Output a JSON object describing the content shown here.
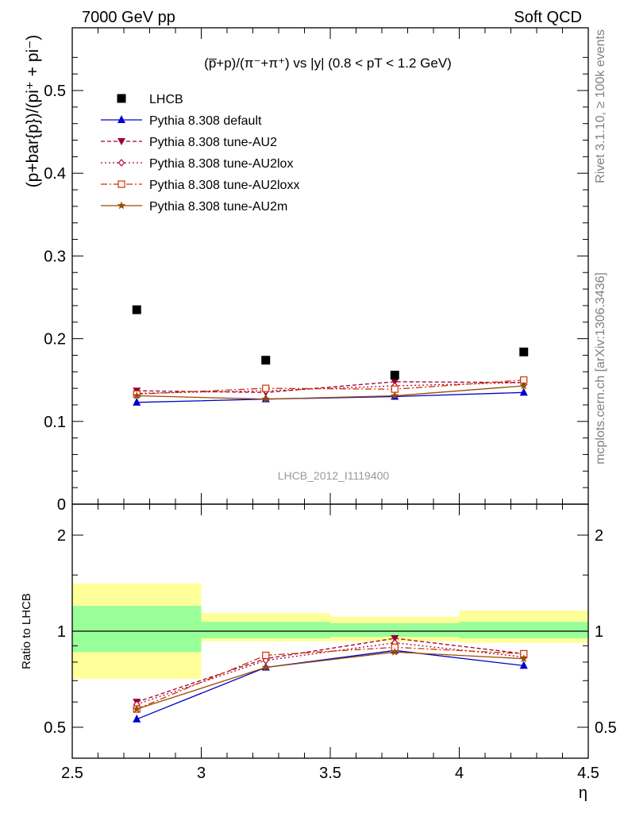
{
  "header": {
    "left": "7000 GeV pp",
    "right": "Soft QCD"
  },
  "side_labels": {
    "rivet": "Rivet 3.1.10, ≥ 100k events",
    "mcplots": "mcplots.cern.ch [arXiv:1306.3436]"
  },
  "watermark": "LHCB_2012_I1119400",
  "colors": {
    "data": "#000000",
    "default": "#0000cc",
    "au2": "#990033",
    "au2lox": "#b30033",
    "au2loxx": "#cc3300",
    "au2m": "#994c00",
    "band_inner": "#99ff99",
    "band_outer": "#ffff99"
  },
  "chart_data": [
    {
      "type": "scatter",
      "title": "(p̅+p)/(π⁻+π⁺) vs |y| (0.8 < pT < 1.2 GeV)",
      "ylabel": "(p+bar{p})/(pi⁺ + pi⁻)",
      "xlim": [
        2.5,
        4.5
      ],
      "ylim": [
        0,
        0.55
      ],
      "yticks": [
        "0",
        "0.1",
        "0.2",
        "0.3",
        "0.4",
        "0.5"
      ],
      "legend_position": "top-left",
      "x": [
        2.75,
        3.25,
        3.75,
        4.25
      ],
      "series": [
        {
          "name": "LHCB",
          "values": [
            0.235,
            0.174,
            0.156,
            0.184
          ]
        },
        {
          "name": "Pythia 8.308 default",
          "values": [
            0.123,
            0.127,
            0.13,
            0.135
          ]
        },
        {
          "name": "Pythia 8.308 tune-AU2",
          "values": [
            0.137,
            0.135,
            0.148,
            0.147
          ]
        },
        {
          "name": "Pythia 8.308 tune-AU2lox",
          "values": [
            0.134,
            0.137,
            0.143,
            0.147
          ]
        },
        {
          "name": "Pythia 8.308 tune-AU2loxx",
          "values": [
            0.133,
            0.14,
            0.139,
            0.15
          ]
        },
        {
          "name": "Pythia 8.308 tune-AU2m",
          "values": [
            0.131,
            0.127,
            0.131,
            0.143
          ]
        }
      ]
    },
    {
      "type": "line",
      "ylabel": "Ratio to LHCB",
      "xlabel": "η",
      "xlim": [
        2.5,
        4.5
      ],
      "ylim": [
        0.35,
        2.3
      ],
      "xticks": [
        "2.5",
        "3",
        "3.5",
        "4",
        "4.5"
      ],
      "yticks": [
        "0.5",
        "1",
        "2"
      ],
      "x": [
        2.75,
        3.25,
        3.75,
        4.25
      ],
      "bands": {
        "edges": [
          2.5,
          3.0,
          3.5,
          4.0,
          4.5
        ],
        "inner": [
          [
            0.86,
            1.2
          ],
          [
            0.95,
            1.07
          ],
          [
            0.96,
            1.06
          ],
          [
            0.95,
            1.07
          ]
        ],
        "outer": [
          [
            0.71,
            1.41
          ],
          [
            0.93,
            1.14
          ],
          [
            0.93,
            1.11
          ],
          [
            0.92,
            1.16
          ]
        ]
      },
      "series": [
        {
          "name": "Pythia 8.308 default",
          "values": [
            0.53,
            0.77,
            0.87,
            0.78
          ]
        },
        {
          "name": "Pythia 8.308 tune-AU2",
          "values": [
            0.6,
            0.82,
            0.95,
            0.85
          ]
        },
        {
          "name": "Pythia 8.308 tune-AU2lox",
          "values": [
            0.59,
            0.81,
            0.92,
            0.83
          ]
        },
        {
          "name": "Pythia 8.308 tune-AU2loxx",
          "values": [
            0.57,
            0.84,
            0.89,
            0.85
          ]
        },
        {
          "name": "Pythia 8.308 tune-AU2m",
          "values": [
            0.57,
            0.77,
            0.86,
            0.82
          ]
        }
      ]
    }
  ]
}
